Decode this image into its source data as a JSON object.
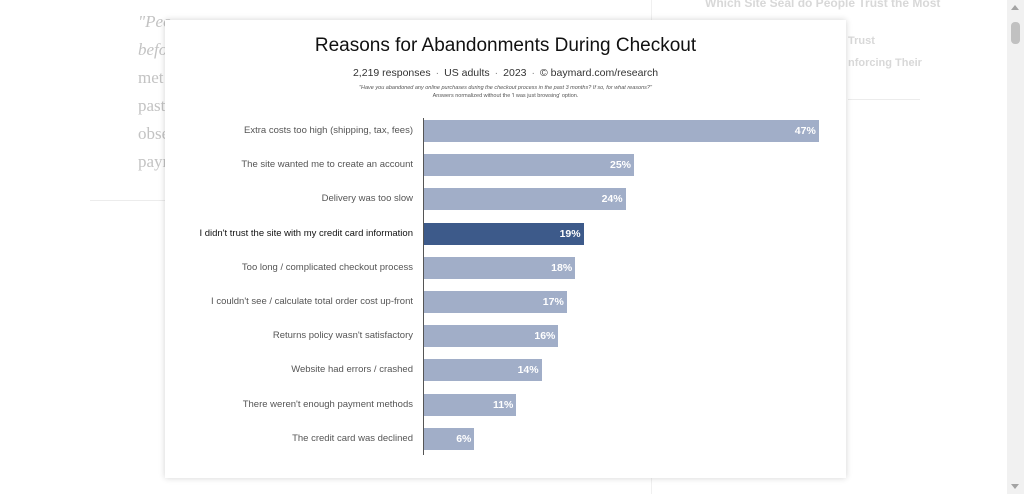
{
  "background": {
    "article_lines": [
      {
        "text": "\"Peo",
        "italic": true
      },
      {
        "text": "befo",
        "italic": true
      },
      {
        "text": "met",
        "italic": false
      },
      {
        "text": "past",
        "italic": false
      },
      {
        "text": "obse",
        "italic": false
      },
      {
        "text": "payr",
        "italic": false
      }
    ],
    "sidebar_title": "Which Site Seal do People Trust the Most",
    "sidebar_link_1": "Trust",
    "sidebar_link_2": "nforcing Their"
  },
  "chart_data": {
    "type": "bar",
    "orientation": "horizontal",
    "title": "Reasons for Abandonments During Checkout",
    "meta": {
      "responses": "2,219 responses",
      "audience": "US adults",
      "year": "2023",
      "source": "© baymard.com/research"
    },
    "question": "\"Have you abandoned any online purchases during the checkout process in the past 3 months? If so, for what reasons?\"",
    "note": "Answers normalized without the 'I was just browsing' option.",
    "xlim": [
      0,
      50
    ],
    "highlight_index": 3,
    "colors": {
      "bar": "#a1aec8",
      "highlight": "#3d5a8a"
    },
    "categories": [
      "Extra costs too high (shipping, tax, fees)",
      "The site wanted me to create an account",
      "Delivery was too slow",
      "I didn't trust the site with my credit card information",
      "Too long / complicated checkout process",
      "I couldn't see / calculate total order cost up-front",
      "Returns policy wasn't satisfactory",
      "Website had errors / crashed",
      "There weren't enough payment methods",
      "The credit card was declined"
    ],
    "values": [
      47,
      25,
      24,
      19,
      18,
      17,
      16,
      14,
      11,
      6
    ],
    "value_labels": [
      "47%",
      "25%",
      "24%",
      "19%",
      "18%",
      "17%",
      "16%",
      "14%",
      "11%",
      "6%"
    ]
  }
}
